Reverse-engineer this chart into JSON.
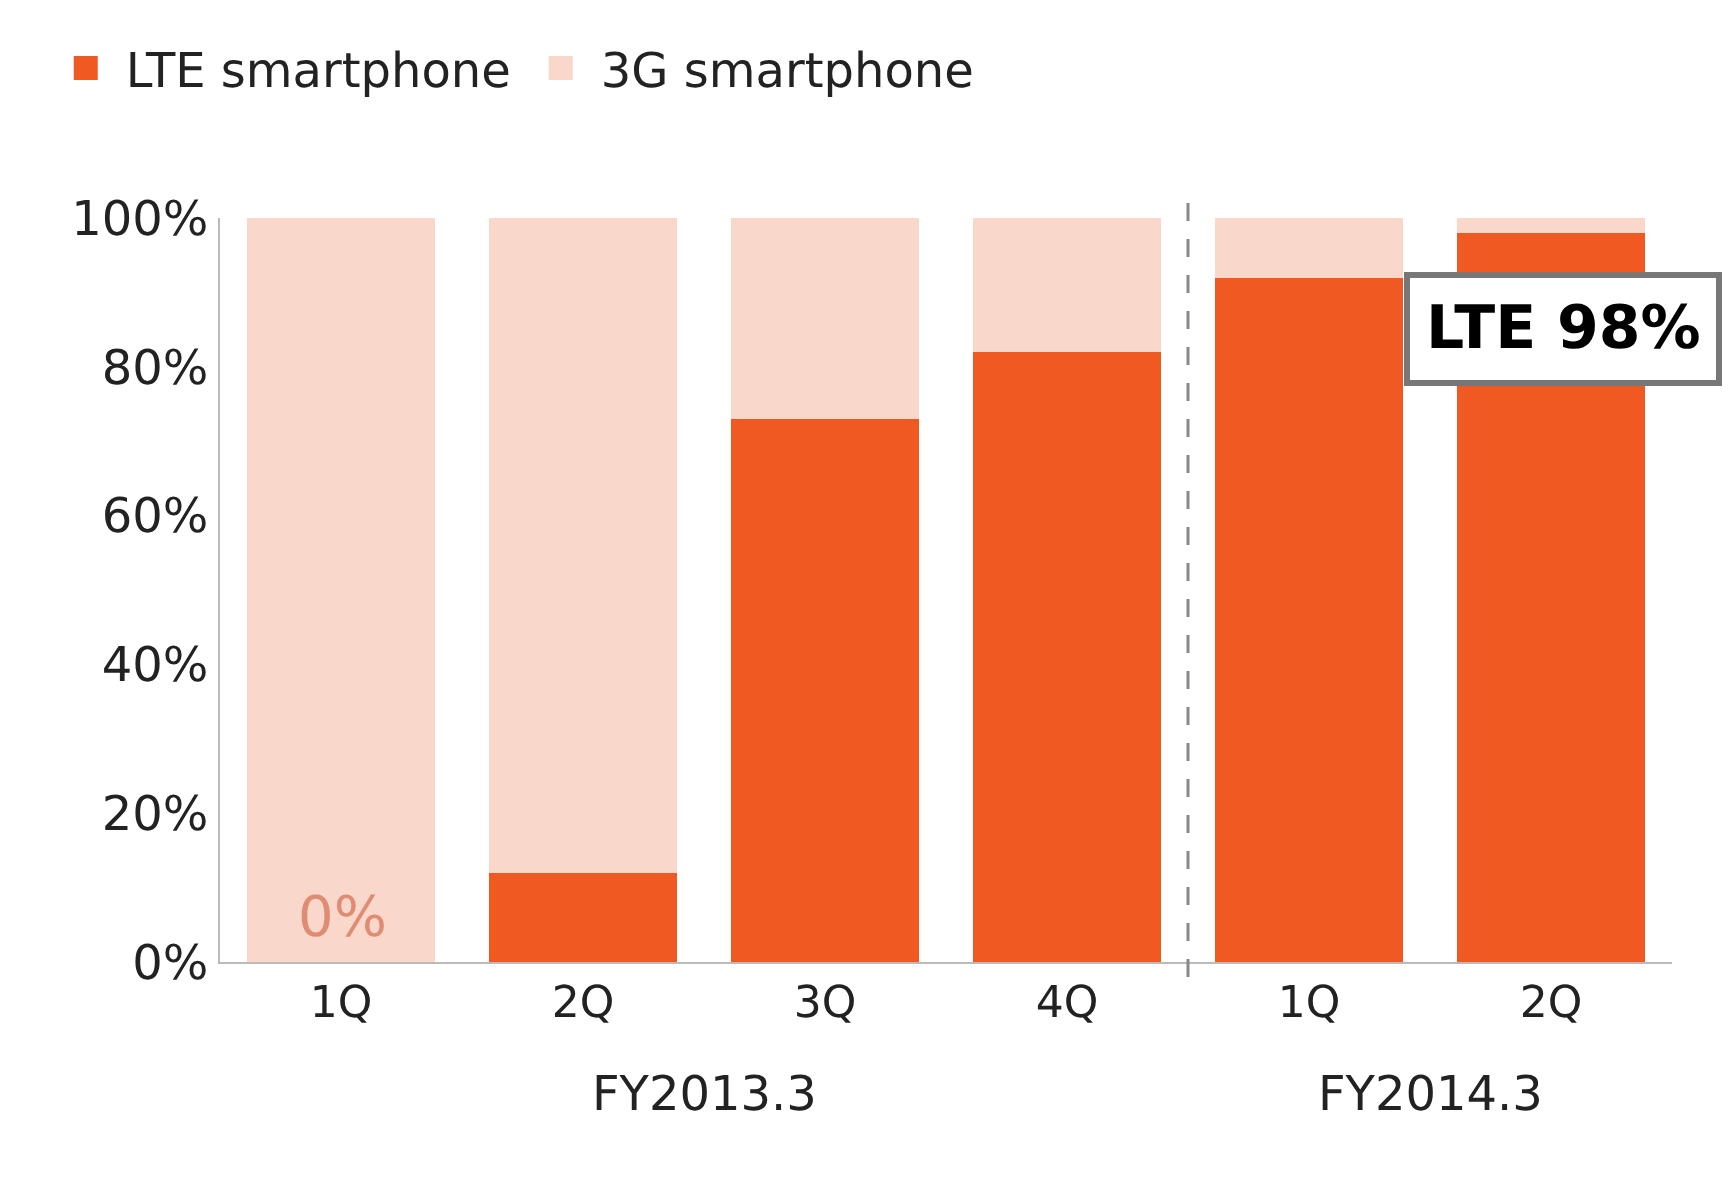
{
  "chart_data": {
    "type": "bar",
    "stacked": true,
    "categories": [
      "1Q",
      "2Q",
      "3Q",
      "4Q",
      "1Q",
      "2Q"
    ],
    "series": [
      {
        "name": "LTE smartphone",
        "color": "#f05a22",
        "values": [
          0,
          12,
          73,
          82,
          92,
          98
        ]
      },
      {
        "name": "3G smartphone",
        "color": "#f9d7cb",
        "values": [
          100,
          88,
          27,
          18,
          8,
          2
        ]
      }
    ],
    "ylim": [
      0,
      100
    ],
    "yticks": [
      {
        "value": 0,
        "label": "0%"
      },
      {
        "value": 20,
        "label": "20%"
      },
      {
        "value": 40,
        "label": "40%"
      },
      {
        "value": 60,
        "label": "60%"
      },
      {
        "value": 80,
        "label": "80%"
      },
      {
        "value": 100,
        "label": "100%"
      }
    ],
    "annotations": [
      "FY2013.3",
      "FY2014.3",
      "LTE 98%",
      "0%"
    ],
    "grid": false,
    "legend": "top left"
  }
}
